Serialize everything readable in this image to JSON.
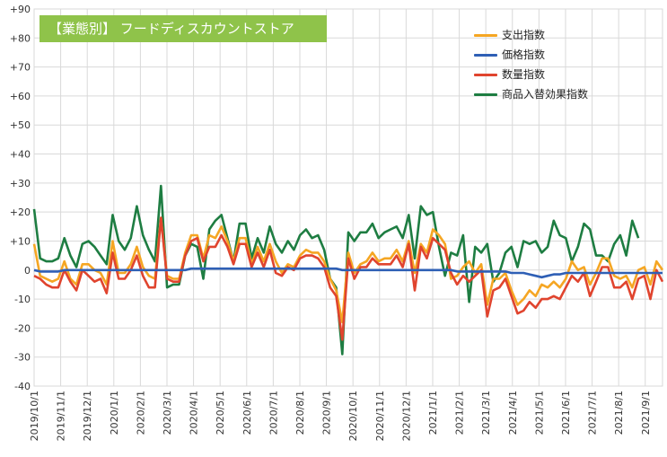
{
  "chart_data": {
    "type": "line",
    "title": "【業態別】 フードディスカウントストア",
    "ylim": [
      -40,
      90
    ],
    "yticks": [
      "+90",
      "+80",
      "+70",
      "+60",
      "+50",
      "+40",
      "+30",
      "+20",
      "+10",
      "0",
      "-10",
      "-20",
      "-30",
      "-40"
    ],
    "ytick_values": [
      90,
      80,
      70,
      60,
      50,
      40,
      30,
      20,
      10,
      0,
      -10,
      -20,
      -30,
      -40
    ],
    "xlabels": [
      "2019/10/1",
      "2019/11/1",
      "2019/12/1",
      "2020/1/1",
      "2020/2/1",
      "2020/3/1",
      "2020/4/1",
      "2020/5/1",
      "2020/6/1",
      "2020/7/1",
      "2020/8/1",
      "2020/9/1",
      "2020/10/1",
      "2020/11/1",
      "2020/12/1",
      "2021/1/1",
      "2021/2/1",
      "2021/3/1",
      "2021/4/1",
      "2021/5/1",
      "2021/6/1",
      "2021/7/1",
      "2021/8/1",
      "2021/9/1"
    ],
    "grid": true,
    "legend_position": "top-right",
    "series": [
      {
        "name": "支出指数",
        "color": "#f5a623",
        "values": [
          9,
          -2,
          -3,
          -4,
          -3,
          3,
          -3,
          -5,
          2,
          2,
          0,
          -1,
          -5,
          10,
          -1,
          -1,
          2,
          8,
          1,
          -2,
          -3,
          18,
          -2,
          -3,
          -3,
          6,
          12,
          12,
          4,
          12,
          11,
          15,
          10,
          3,
          11,
          11,
          2,
          8,
          3,
          9,
          3,
          -1,
          2,
          1,
          5,
          7,
          6,
          6,
          3,
          -3,
          -7,
          -18,
          6,
          -1,
          2,
          3,
          6,
          3,
          4,
          4,
          7,
          3,
          10,
          -1,
          9,
          6,
          14,
          12,
          9,
          -3,
          -2,
          1,
          3,
          -1,
          2,
          -12,
          -3,
          -3,
          -1,
          -7,
          -12,
          -10,
          -7,
          -9,
          -5,
          -6,
          -4,
          -6,
          -3,
          3,
          0,
          1,
          -5,
          -1,
          4,
          4,
          -2,
          -3,
          -2,
          -6,
          0,
          1,
          -5,
          3,
          0
        ]
      },
      {
        "name": "価格指数",
        "color": "#2e5fb5",
        "values": [
          0,
          -0.5,
          -0.5,
          -0.5,
          -0.5,
          0,
          0,
          0,
          0,
          0,
          0,
          0,
          0,
          0,
          0,
          0,
          0,
          0,
          0,
          0,
          0,
          0,
          0,
          0,
          0,
          0,
          0.5,
          0.5,
          0.5,
          0.5,
          0.5,
          0.5,
          0.5,
          0.5,
          0.5,
          0.5,
          0.5,
          0.5,
          0.5,
          0.5,
          0.5,
          0.5,
          0.5,
          0.5,
          0.5,
          0.5,
          0.5,
          0.5,
          0.5,
          0.5,
          0.5,
          0,
          0,
          0,
          0,
          0,
          0,
          0,
          0,
          0,
          0,
          0,
          0,
          0,
          0,
          0,
          0,
          0,
          0,
          0,
          -0.5,
          -0.5,
          -0.5,
          -0.5,
          -0.5,
          -0.5,
          -0.5,
          -0.5,
          -0.5,
          -1,
          -1,
          -1,
          -1.5,
          -2,
          -2.5,
          -2,
          -1.5,
          -1.5,
          -1,
          -1,
          -1,
          -1,
          -1,
          -1,
          -1,
          -1,
          -1,
          -1,
          -1,
          -1,
          -1,
          -1,
          -1,
          -1,
          -1
        ]
      },
      {
        "name": "数量指数",
        "color": "#e0442e",
        "values": [
          -2,
          -3,
          -5,
          -6,
          -6,
          0,
          -4,
          -7,
          0,
          -2,
          -4,
          -3,
          -8,
          6,
          -3,
          -3,
          0,
          5,
          -2,
          -6,
          -6,
          18,
          -3,
          -4,
          -4,
          5,
          10,
          11,
          3,
          8,
          8,
          12,
          8,
          2,
          9,
          9,
          1,
          6,
          1,
          7,
          -1,
          -2,
          1,
          0,
          4,
          5,
          5,
          4,
          1,
          -6,
          -9,
          -24,
          4,
          -3,
          1,
          1,
          4,
          2,
          2,
          2,
          5,
          1,
          9,
          -7,
          8,
          4,
          11,
          9,
          7,
          -1,
          -5,
          -2,
          -4,
          -2,
          0,
          -16,
          -7,
          -6,
          -3,
          -9,
          -15,
          -14,
          -11,
          -13,
          -10,
          -10,
          -9,
          -10,
          -6,
          -2,
          -4,
          -1,
          -9,
          -4,
          1,
          1,
          -6,
          -6,
          -4,
          -10,
          -3,
          -2,
          -10,
          0,
          -4
        ]
      },
      {
        "name": "商品入替効果指数",
        "color": "#1e7d42",
        "values": [
          21,
          4,
          3,
          3,
          4,
          11,
          5,
          1,
          9,
          10,
          8,
          5,
          2,
          19,
          10,
          7,
          11,
          22,
          12,
          7,
          3,
          29,
          -6,
          -5,
          -5,
          5,
          9,
          8,
          -3,
          14,
          17,
          19,
          11,
          3,
          16,
          16,
          4,
          11,
          6,
          15,
          9,
          6,
          10,
          7,
          12,
          14,
          11,
          12,
          7,
          -3,
          -6,
          -29,
          13,
          10,
          13,
          13,
          16,
          11,
          13,
          14,
          15,
          11,
          19,
          4,
          22,
          19,
          20,
          8,
          -2,
          6,
          5,
          12,
          -11,
          8,
          6,
          9,
          -4,
          -1,
          6,
          8,
          1,
          10,
          9,
          10,
          6,
          8,
          17,
          12,
          11,
          3,
          8,
          16,
          14,
          5,
          5,
          3,
          9,
          12,
          5,
          17,
          11
        ]
      }
    ]
  }
}
